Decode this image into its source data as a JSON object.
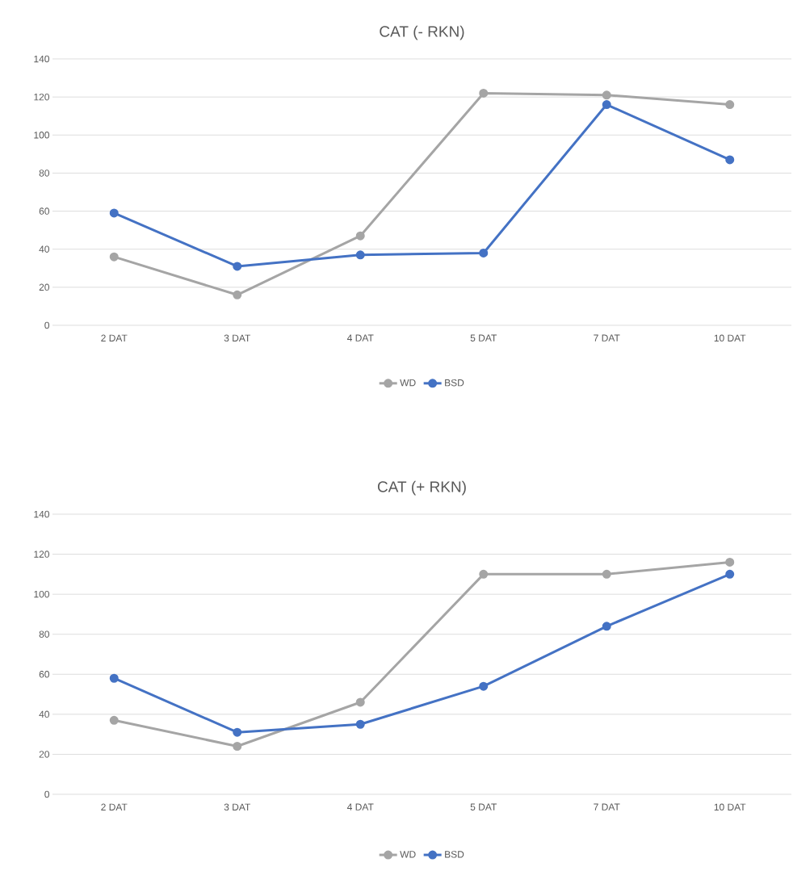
{
  "chart_data": [
    {
      "type": "line",
      "title": "CAT (- RKN)",
      "categories": [
        "2 DAT",
        "3 DAT",
        "4 DAT",
        "5 DAT",
        "7 DAT",
        "10 DAT"
      ],
      "series": [
        {
          "name": "WD",
          "color": "#a5a5a5",
          "values": [
            36,
            16,
            47,
            122,
            121,
            116
          ]
        },
        {
          "name": "BSD",
          "color": "#4472c4",
          "values": [
            59,
            31,
            37,
            38,
            116,
            87
          ]
        }
      ],
      "ylim": [
        0,
        140
      ],
      "yticks": [
        0,
        20,
        40,
        60,
        80,
        100,
        120,
        140
      ],
      "grid": "y",
      "legend": "bottom",
      "marker": "circle",
      "line_style": "solid"
    },
    {
      "type": "line",
      "title": "CAT (+ RKN)",
      "categories": [
        "2 DAT",
        "3 DAT",
        "4 DAT",
        "5 DAT",
        "7 DAT",
        "10 DAT"
      ],
      "series": [
        {
          "name": "WD",
          "color": "#a5a5a5",
          "values": [
            37,
            24,
            46,
            110,
            110,
            116
          ]
        },
        {
          "name": "BSD",
          "color": "#4472c4",
          "values": [
            58,
            31,
            35,
            54,
            84,
            110
          ]
        }
      ],
      "ylim": [
        0,
        140
      ],
      "yticks": [
        0,
        20,
        40,
        60,
        80,
        100,
        120,
        140
      ],
      "grid": "y",
      "legend": "bottom",
      "marker": "circle",
      "line_style": "solid"
    }
  ]
}
